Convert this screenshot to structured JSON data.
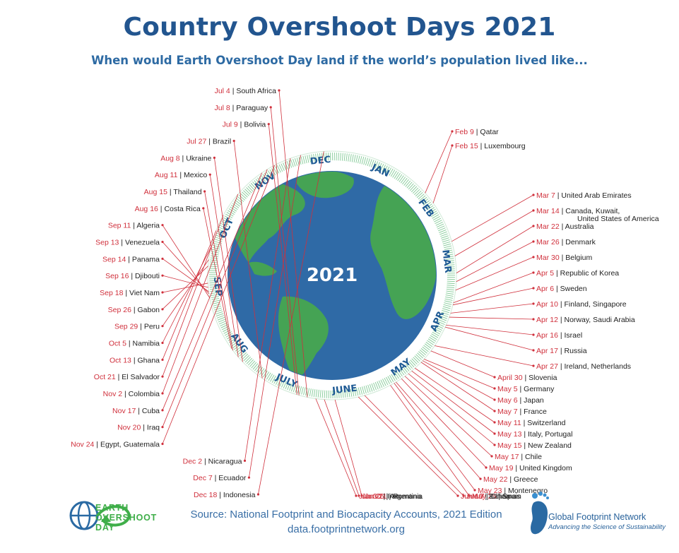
{
  "title": "Country Overshoot Days 2021",
  "subtitle": "When would Earth Overshoot Day land if the world’s population lived like...",
  "center_label": "2021",
  "source": {
    "line1": "Source: National Footprint and Biocapacity Accounts, 2021 Edition",
    "line2": "data.footprintnetwork.org"
  },
  "logos": {
    "eod_line1": "EARTH",
    "eod_line2": "OVERSHOOT",
    "eod_line3": "DAY",
    "gfn_name": "Global Footprint Network",
    "gfn_tagline": "Advancing the Science of Sustainability"
  },
  "colors": {
    "title": "#22558f",
    "date": "#d0303c",
    "ocean": "#2f6aa6",
    "land": "#45a354",
    "ring": "#8ecfa0",
    "months": "#1e5a94"
  },
  "chart_data": {
    "type": "radial-timeline",
    "months": [
      "JAN",
      "FEB",
      "MAR",
      "APR",
      "MAY",
      "JUNE",
      "JULY",
      "AUG",
      "SEP",
      "OCT",
      "NOV",
      "DEC"
    ],
    "points": [
      {
        "date": "Feb 9",
        "country": "Qatar"
      },
      {
        "date": "Feb 15",
        "country": "Luxembourg"
      },
      {
        "date": "Mar 7",
        "country": "United Arab Emirates"
      },
      {
        "date": "Mar 14",
        "country": "Canada, Kuwait,",
        "country2": "United States of America"
      },
      {
        "date": "Mar 22",
        "country": "Australia"
      },
      {
        "date": "Mar 26",
        "country": "Denmark"
      },
      {
        "date": "Mar 30",
        "country": "Belgium"
      },
      {
        "date": "Apr 5",
        "country": "Republic of Korea"
      },
      {
        "date": "Apr 6",
        "country": "Sweden"
      },
      {
        "date": "Apr 10",
        "country": "Finland, Singapore"
      },
      {
        "date": "Apr 12",
        "country": "Norway, Saudi Arabia"
      },
      {
        "date": "Apr 16",
        "country": "Israel"
      },
      {
        "date": "Apr 17",
        "country": "Russia"
      },
      {
        "date": "Apr 27",
        "country": "Ireland, Netherlands"
      },
      {
        "date": "April 30",
        "country": "Slovenia"
      },
      {
        "date": "May 5",
        "country": "Germany"
      },
      {
        "date": "May 6",
        "country": "Japan"
      },
      {
        "date": "May 7",
        "country": "France"
      },
      {
        "date": "May 11",
        "country": "Switzerland"
      },
      {
        "date": "May 13",
        "country": "Italy, Portugal"
      },
      {
        "date": "May 15",
        "country": "New Zealand"
      },
      {
        "date": "May 17",
        "country": "Chile"
      },
      {
        "date": "May 19",
        "country": "United Kingdom"
      },
      {
        "date": "May 22",
        "country": "Greece"
      },
      {
        "date": "May 23",
        "country": "Montenegro"
      },
      {
        "date": "May 25",
        "country": "Spain"
      },
      {
        "date": "Jun 7",
        "country": "China"
      },
      {
        "date": "Jun 10",
        "country": "Bahamas"
      },
      {
        "date": "Jun 21",
        "country": "Romania"
      },
      {
        "date": "Jun 26",
        "country": "Argentina"
      },
      {
        "date": "Jun 30",
        "country": "Iran"
      },
      {
        "date": "Jul 4",
        "country": "South Africa"
      },
      {
        "date": "Jul 8",
        "country": "Paraguay"
      },
      {
        "date": "Jul 9",
        "country": "Bolivia"
      },
      {
        "date": "Jul 27",
        "country": "Brazil"
      },
      {
        "date": "Aug 8",
        "country": "Ukraine"
      },
      {
        "date": "Aug 11",
        "country": "Mexico"
      },
      {
        "date": "Aug 15",
        "country": "Thailand"
      },
      {
        "date": "Aug 16",
        "country": "Costa Rica"
      },
      {
        "date": "Sep 11",
        "country": "Algeria"
      },
      {
        "date": "Sep 13",
        "country": "Venezuela"
      },
      {
        "date": "Sep 14",
        "country": "Panama"
      },
      {
        "date": "Sep 16",
        "country": "Djibouti"
      },
      {
        "date": "Sep 18",
        "country": "Viet Nam"
      },
      {
        "date": "Sep 26",
        "country": "Gabon"
      },
      {
        "date": "Sep 29",
        "country": "Peru"
      },
      {
        "date": "Oct 5",
        "country": "Namibia"
      },
      {
        "date": "Oct 13",
        "country": "Ghana"
      },
      {
        "date": "Oct 21",
        "country": "El Salvador"
      },
      {
        "date": "Nov 2",
        "country": "Colombia"
      },
      {
        "date": "Nov 17",
        "country": "Cuba"
      },
      {
        "date": "Nov 20",
        "country": "Iraq"
      },
      {
        "date": "Nov 24",
        "country": "Egypt, Guatemala"
      },
      {
        "date": "Dec 2",
        "country": "Nicaragua"
      },
      {
        "date": "Dec 7",
        "country": "Ecuador"
      },
      {
        "date": "Dec 18",
        "country": "Indonesia"
      }
    ]
  }
}
